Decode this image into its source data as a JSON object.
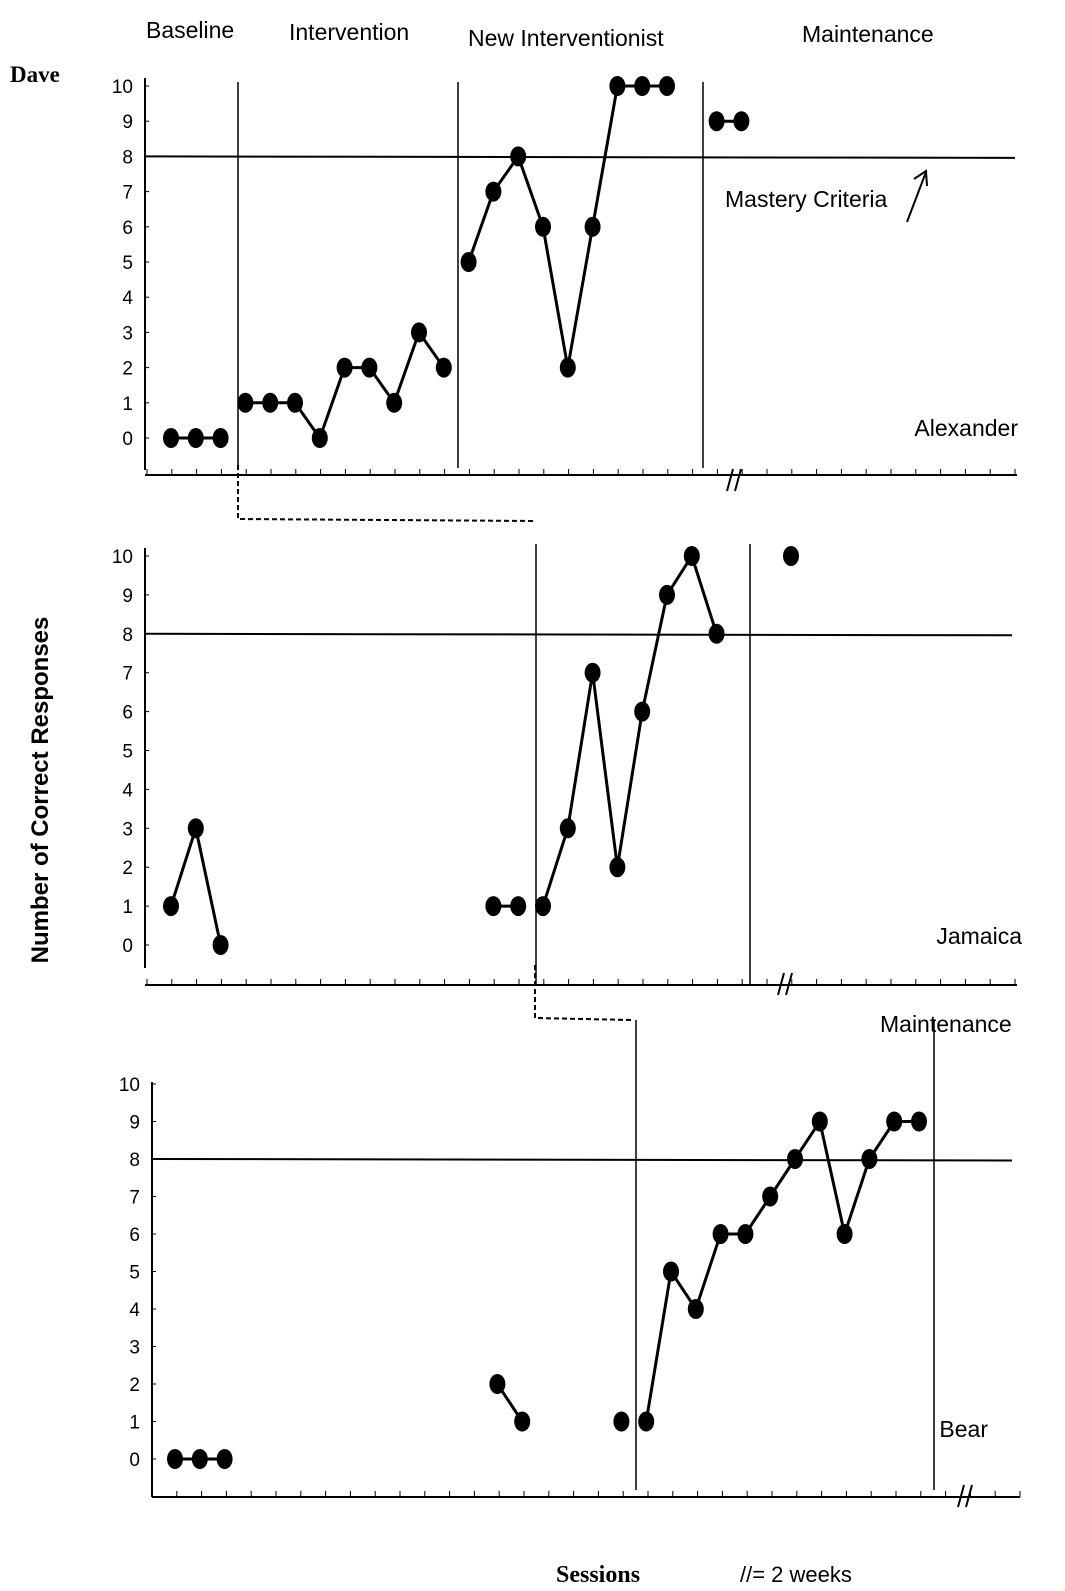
{
  "figure": {
    "phase_labels": [
      "Baseline",
      "Intervention",
      "New Interventionist",
      "Maintenance"
    ],
    "participant_label": "Dave",
    "y_axis_label": "Number of Correct Responses",
    "mastery_label": "Mastery Criteria",
    "x_axis_label": "Sessions",
    "break_note": "//= 2 weeks",
    "bear_maintenance_label": "Maintenance"
  },
  "chart_data": [
    {
      "type": "line",
      "panel_name": "Alexander",
      "x_label": "",
      "y_label": "",
      "ylim": [
        0,
        10
      ],
      "y_ticks": [
        "0",
        "1",
        "2",
        "3",
        "4",
        "5",
        "6",
        "7",
        "8",
        "9",
        "10"
      ],
      "mastery_line": 8,
      "phase_changes": [
        3.5,
        12.5,
        22.5
      ],
      "axis_break_after_session": 23,
      "segments": [
        {
          "phase": "Baseline",
          "points": [
            [
              1,
              0
            ],
            [
              2,
              0
            ],
            [
              3,
              0
            ]
          ]
        },
        {
          "phase": "Intervention",
          "points": [
            [
              4,
              1
            ],
            [
              5,
              1
            ],
            [
              6,
              1
            ],
            [
              7,
              0
            ],
            [
              8,
              2
            ],
            [
              9,
              2
            ],
            [
              10,
              1
            ],
            [
              11,
              3
            ],
            [
              12,
              2
            ]
          ]
        },
        {
          "phase": "New Interventionist",
          "points": [
            [
              13,
              5
            ],
            [
              14,
              7
            ],
            [
              15,
              8
            ],
            [
              16,
              6
            ],
            [
              17,
              2
            ],
            [
              18,
              6
            ],
            [
              19,
              10
            ],
            [
              20,
              10
            ],
            [
              21,
              10
            ]
          ]
        },
        {
          "phase": "Maintenance",
          "points": [
            [
              23,
              9
            ],
            [
              24,
              9
            ]
          ]
        }
      ]
    },
    {
      "type": "line",
      "panel_name": "Jamaica",
      "x_label": "",
      "y_label": "",
      "ylim": [
        0,
        10
      ],
      "y_ticks": [
        "0",
        "1",
        "2",
        "3",
        "4",
        "5",
        "6",
        "7",
        "8",
        "9",
        "10"
      ],
      "mastery_line": 8,
      "phase_changes": [
        15.5,
        24.5
      ],
      "axis_break_after_session": 25,
      "segments": [
        {
          "phase": "Baseline",
          "points": [
            [
              1,
              1
            ],
            [
              2,
              3
            ],
            [
              3,
              0
            ]
          ]
        },
        {
          "phase": "Baseline",
          "points": [
            [
              14,
              1
            ],
            [
              15,
              1
            ]
          ]
        },
        {
          "phase": "Intervention",
          "points": [
            [
              16,
              1
            ],
            [
              17,
              3
            ],
            [
              18,
              7
            ],
            [
              19,
              2
            ],
            [
              20,
              6
            ],
            [
              21,
              9
            ],
            [
              22,
              10
            ],
            [
              23,
              8
            ]
          ]
        },
        {
          "phase": "Maintenance",
          "points": [
            [
              26,
              10
            ]
          ]
        }
      ]
    },
    {
      "type": "line",
      "panel_name": "Bear",
      "x_label": "Sessions",
      "y_label": "",
      "ylim": [
        0,
        10
      ],
      "y_ticks": [
        "0",
        "1",
        "2",
        "3",
        "4",
        "5",
        "6",
        "7",
        "8",
        "9",
        "10"
      ],
      "mastery_line": 8,
      "phase_changes": [
        19.5,
        31.5
      ],
      "axis_break_after_session": 32,
      "segments": [
        {
          "phase": "Baseline",
          "points": [
            [
              1,
              0
            ],
            [
              2,
              0
            ],
            [
              3,
              0
            ]
          ]
        },
        {
          "phase": "Baseline",
          "points": [
            [
              14,
              2
            ],
            [
              15,
              1
            ]
          ]
        },
        {
          "phase": "Baseline",
          "points": [
            [
              19,
              1
            ]
          ]
        },
        {
          "phase": "Intervention",
          "points": [
            [
              20,
              1
            ],
            [
              21,
              5
            ],
            [
              22,
              4
            ],
            [
              23,
              6
            ],
            [
              24,
              6
            ],
            [
              25,
              7
            ],
            [
              26,
              8
            ],
            [
              27,
              9
            ],
            [
              28,
              6
            ],
            [
              29,
              8
            ],
            [
              30,
              9
            ],
            [
              31,
              9
            ]
          ]
        }
      ]
    }
  ]
}
